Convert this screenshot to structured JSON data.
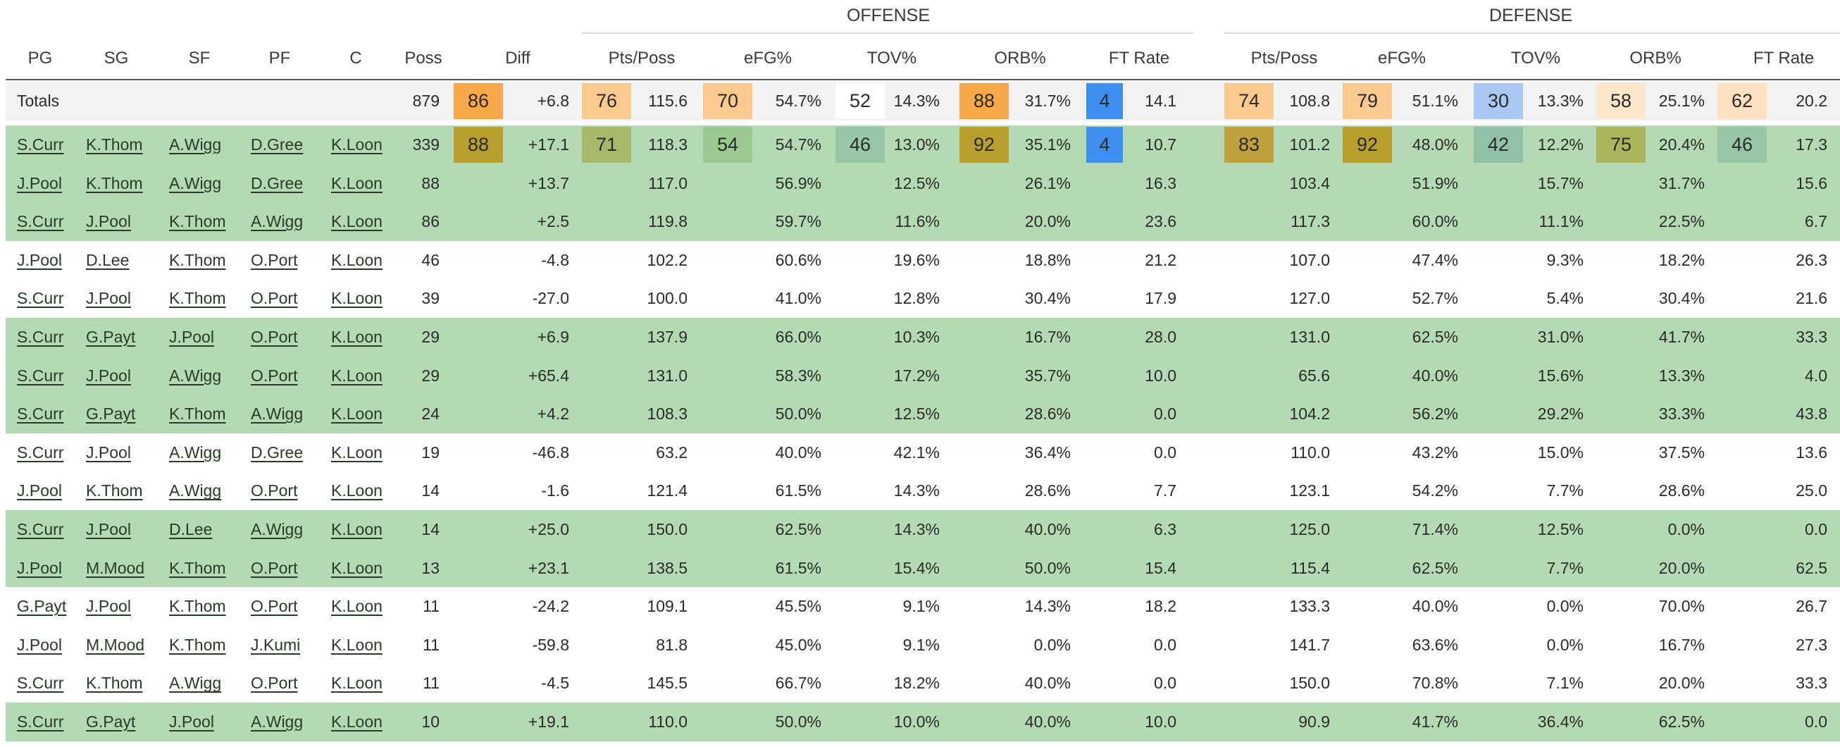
{
  "groups": {
    "offense": "OFFENSE",
    "defense": "DEFENSE"
  },
  "headers": {
    "pg": "PG",
    "sg": "SG",
    "sf": "SF",
    "pf": "PF",
    "c": "C",
    "poss": "Poss",
    "diff": "Diff",
    "off_pts": "Pts/Poss",
    "off_efg": "eFG%",
    "off_tov": "TOV%",
    "off_orb": "ORB%",
    "off_ft": "FT Rate",
    "def_pts": "Pts/Poss",
    "def_efg": "eFG%",
    "def_tov": "TOV%",
    "def_orb": "ORB%",
    "def_ft": "FT Rate"
  },
  "colors": {
    "row_green": "#b5d9b5",
    "totals_bg": "#f2f2f2",
    "pct_orange_strong": "#f7a94a",
    "pct_orange_light": "#fbc98d",
    "pct_blue_strong": "#3f8ff0",
    "pct_blue_light": "#a9c9f5",
    "pct_olive": "#b9a02e"
  },
  "totals": {
    "label": "Totals",
    "poss": "879",
    "diff_pct": "86",
    "diff": "+6.8",
    "off_pts_pct": "76",
    "off_pts": "115.6",
    "off_efg_pct": "70",
    "off_efg": "54.7%",
    "off_tov_pct": "52",
    "off_tov": "14.3%",
    "off_orb_pct": "88",
    "off_orb": "31.7%",
    "off_ft_pct": "4",
    "off_ft": "14.1",
    "def_pts_pct": "74",
    "def_pts": "108.8",
    "def_efg_pct": "79",
    "def_efg": "51.1%",
    "def_tov_pct": "30",
    "def_tov": "13.3%",
    "def_orb_pct": "58",
    "def_orb": "25.1%",
    "def_ft_pct": "62",
    "def_ft": "20.2"
  },
  "rows": [
    {
      "pg": "S.Curr",
      "sg": "K.Thom",
      "sf": "A.Wigg",
      "pf": "D.Gree",
      "c": "K.Loon",
      "poss": "339",
      "diff_pct": "88",
      "diff": "+17.1",
      "off_pts_pct": "71",
      "off_pts": "118.3",
      "off_efg_pct": "54",
      "off_efg": "54.7%",
      "off_tov_pct": "46",
      "off_tov": "13.0%",
      "off_orb_pct": "92",
      "off_orb": "35.1%",
      "off_ft_pct": "4",
      "off_ft": "10.7",
      "def_pts_pct": "83",
      "def_pts": "101.2",
      "def_efg_pct": "92",
      "def_efg": "48.0%",
      "def_tov_pct": "42",
      "def_tov": "12.2%",
      "def_orb_pct": "75",
      "def_orb": "20.4%",
      "def_ft_pct": "46",
      "def_ft": "17.3"
    },
    {
      "pg": "J.Pool",
      "sg": "K.Thom",
      "sf": "A.Wigg",
      "pf": "D.Gree",
      "c": "K.Loon",
      "poss": "88",
      "diff": "+13.7",
      "off_pts": "117.0",
      "off_efg": "56.9%",
      "off_tov": "12.5%",
      "off_orb": "26.1%",
      "off_ft": "16.3",
      "def_pts": "103.4",
      "def_efg": "51.9%",
      "def_tov": "15.7%",
      "def_orb": "31.7%",
      "def_ft": "15.6"
    },
    {
      "pg": "S.Curr",
      "sg": "J.Pool",
      "sf": "K.Thom",
      "pf": "A.Wigg",
      "c": "K.Loon",
      "poss": "86",
      "diff": "+2.5",
      "off_pts": "119.8",
      "off_efg": "59.7%",
      "off_tov": "11.6%",
      "off_orb": "20.0%",
      "off_ft": "23.6",
      "def_pts": "117.3",
      "def_efg": "60.0%",
      "def_tov": "11.1%",
      "def_orb": "22.5%",
      "def_ft": "6.7"
    },
    {
      "pg": "J.Pool",
      "sg": "D.Lee",
      "sf": "K.Thom",
      "pf": "O.Port",
      "c": "K.Loon",
      "poss": "46",
      "diff": "-4.8",
      "off_pts": "102.2",
      "off_efg": "60.6%",
      "off_tov": "19.6%",
      "off_orb": "18.8%",
      "off_ft": "21.2",
      "def_pts": "107.0",
      "def_efg": "47.4%",
      "def_tov": "9.3%",
      "def_orb": "18.2%",
      "def_ft": "26.3"
    },
    {
      "pg": "S.Curr",
      "sg": "J.Pool",
      "sf": "K.Thom",
      "pf": "O.Port",
      "c": "K.Loon",
      "poss": "39",
      "diff": "-27.0",
      "off_pts": "100.0",
      "off_efg": "41.0%",
      "off_tov": "12.8%",
      "off_orb": "30.4%",
      "off_ft": "17.9",
      "def_pts": "127.0",
      "def_efg": "52.7%",
      "def_tov": "5.4%",
      "def_orb": "30.4%",
      "def_ft": "21.6"
    },
    {
      "pg": "S.Curr",
      "sg": "G.Payt",
      "sf": "J.Pool",
      "pf": "O.Port",
      "c": "K.Loon",
      "poss": "29",
      "diff": "+6.9",
      "off_pts": "137.9",
      "off_efg": "66.0%",
      "off_tov": "10.3%",
      "off_orb": "16.7%",
      "off_ft": "28.0",
      "def_pts": "131.0",
      "def_efg": "62.5%",
      "def_tov": "31.0%",
      "def_orb": "41.7%",
      "def_ft": "33.3"
    },
    {
      "pg": "S.Curr",
      "sg": "J.Pool",
      "sf": "A.Wigg",
      "pf": "O.Port",
      "c": "K.Loon",
      "poss": "29",
      "diff": "+65.4",
      "off_pts": "131.0",
      "off_efg": "58.3%",
      "off_tov": "17.2%",
      "off_orb": "35.7%",
      "off_ft": "10.0",
      "def_pts": "65.6",
      "def_efg": "40.0%",
      "def_tov": "15.6%",
      "def_orb": "13.3%",
      "def_ft": "4.0"
    },
    {
      "pg": "S.Curr",
      "sg": "G.Payt",
      "sf": "K.Thom",
      "pf": "A.Wigg",
      "c": "K.Loon",
      "poss": "24",
      "diff": "+4.2",
      "off_pts": "108.3",
      "off_efg": "50.0%",
      "off_tov": "12.5%",
      "off_orb": "28.6%",
      "off_ft": "0.0",
      "def_pts": "104.2",
      "def_efg": "56.2%",
      "def_tov": "29.2%",
      "def_orb": "33.3%",
      "def_ft": "43.8"
    },
    {
      "pg": "S.Curr",
      "sg": "J.Pool",
      "sf": "A.Wigg",
      "pf": "D.Gree",
      "c": "K.Loon",
      "poss": "19",
      "diff": "-46.8",
      "off_pts": "63.2",
      "off_efg": "40.0%",
      "off_tov": "42.1%",
      "off_orb": "36.4%",
      "off_ft": "0.0",
      "def_pts": "110.0",
      "def_efg": "43.2%",
      "def_tov": "15.0%",
      "def_orb": "37.5%",
      "def_ft": "13.6"
    },
    {
      "pg": "J.Pool",
      "sg": "K.Thom",
      "sf": "A.Wigg",
      "pf": "O.Port",
      "c": "K.Loon",
      "poss": "14",
      "diff": "-1.6",
      "off_pts": "121.4",
      "off_efg": "61.5%",
      "off_tov": "14.3%",
      "off_orb": "28.6%",
      "off_ft": "7.7",
      "def_pts": "123.1",
      "def_efg": "54.2%",
      "def_tov": "7.7%",
      "def_orb": "28.6%",
      "def_ft": "25.0"
    },
    {
      "pg": "S.Curr",
      "sg": "J.Pool",
      "sf": "D.Lee",
      "pf": "A.Wigg",
      "c": "K.Loon",
      "poss": "14",
      "diff": "+25.0",
      "off_pts": "150.0",
      "off_efg": "62.5%",
      "off_tov": "14.3%",
      "off_orb": "40.0%",
      "off_ft": "6.3",
      "def_pts": "125.0",
      "def_efg": "71.4%",
      "def_tov": "12.5%",
      "def_orb": "0.0%",
      "def_ft": "0.0"
    },
    {
      "pg": "J.Pool",
      "sg": "M.Mood",
      "sf": "K.Thom",
      "pf": "O.Port",
      "c": "K.Loon",
      "poss": "13",
      "diff": "+23.1",
      "off_pts": "138.5",
      "off_efg": "61.5%",
      "off_tov": "15.4%",
      "off_orb": "50.0%",
      "off_ft": "15.4",
      "def_pts": "115.4",
      "def_efg": "62.5%",
      "def_tov": "7.7%",
      "def_orb": "20.0%",
      "def_ft": "62.5"
    },
    {
      "pg": "G.Payt",
      "sg": "J.Pool",
      "sf": "K.Thom",
      "pf": "O.Port",
      "c": "K.Loon",
      "poss": "11",
      "diff": "-24.2",
      "off_pts": "109.1",
      "off_efg": "45.5%",
      "off_tov": "9.1%",
      "off_orb": "14.3%",
      "off_ft": "18.2",
      "def_pts": "133.3",
      "def_efg": "40.0%",
      "def_tov": "0.0%",
      "def_orb": "70.0%",
      "def_ft": "26.7"
    },
    {
      "pg": "J.Pool",
      "sg": "M.Mood",
      "sf": "K.Thom",
      "pf": "J.Kumi",
      "c": "K.Loon",
      "poss": "11",
      "diff": "-59.8",
      "off_pts": "81.8",
      "off_efg": "45.0%",
      "off_tov": "9.1%",
      "off_orb": "0.0%",
      "off_ft": "0.0",
      "def_pts": "141.7",
      "def_efg": "63.6%",
      "def_tov": "0.0%",
      "def_orb": "16.7%",
      "def_ft": "27.3"
    },
    {
      "pg": "S.Curr",
      "sg": "K.Thom",
      "sf": "A.Wigg",
      "pf": "O.Port",
      "c": "K.Loon",
      "poss": "11",
      "diff": "-4.5",
      "off_pts": "145.5",
      "off_efg": "66.7%",
      "off_tov": "18.2%",
      "off_orb": "40.0%",
      "off_ft": "0.0",
      "def_pts": "150.0",
      "def_efg": "70.8%",
      "def_tov": "7.1%",
      "def_orb": "20.0%",
      "def_ft": "33.3"
    },
    {
      "pg": "S.Curr",
      "sg": "G.Payt",
      "sf": "J.Pool",
      "pf": "A.Wigg",
      "c": "K.Loon",
      "poss": "10",
      "diff": "+19.1",
      "off_pts": "110.0",
      "off_efg": "50.0%",
      "off_tov": "10.0%",
      "off_orb": "40.0%",
      "off_ft": "10.0",
      "def_pts": "90.9",
      "def_efg": "41.7%",
      "def_tov": "36.4%",
      "def_orb": "62.5%",
      "def_ft": "0.0"
    }
  ]
}
